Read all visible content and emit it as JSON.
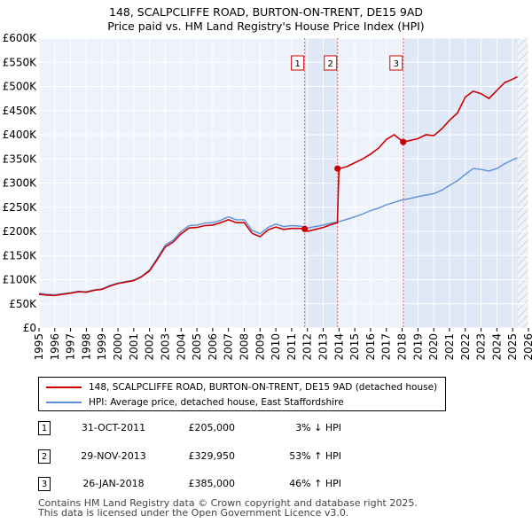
{
  "title_line1": "148, SCALPCLIFFE ROAD, BURTON-ON-TRENT, DE15 9AD",
  "title_line2": "Price paid vs. HM Land Registry's House Price Index (HPI)",
  "chart_data": {
    "type": "line",
    "title": "148, SCALPCLIFFE ROAD, BURTON-ON-TRENT, DE15 9AD — Price paid vs. HM Land Registry's House Price Index (HPI)",
    "xlabel": "",
    "ylabel": "",
    "xlim": [
      1995,
      2026
    ],
    "ylim": [
      0,
      600000
    ],
    "x_ticks": [
      1995,
      1996,
      1997,
      1998,
      1999,
      2000,
      2001,
      2002,
      2003,
      2004,
      2005,
      2006,
      2007,
      2008,
      2009,
      2010,
      2011,
      2012,
      2013,
      2014,
      2015,
      2016,
      2017,
      2018,
      2019,
      2020,
      2021,
      2022,
      2023,
      2024,
      2025,
      2026
    ],
    "y_ticks": [
      {
        "value": 0,
        "label": "£0"
      },
      {
        "value": 50000,
        "label": "£50K"
      },
      {
        "value": 100000,
        "label": "£100K"
      },
      {
        "value": 150000,
        "label": "£150K"
      },
      {
        "value": 200000,
        "label": "£200K"
      },
      {
        "value": 250000,
        "label": "£250K"
      },
      {
        "value": 300000,
        "label": "£300K"
      },
      {
        "value": 350000,
        "label": "£350K"
      },
      {
        "value": 400000,
        "label": "£400K"
      },
      {
        "value": 450000,
        "label": "£450K"
      },
      {
        "value": 500000,
        "label": "£500K"
      },
      {
        "value": 550000,
        "label": "£550K"
      },
      {
        "value": 600000,
        "label": "£600K"
      }
    ],
    "grid": true,
    "hatched_region_start": 2025.3,
    "series": [
      {
        "name": "148, SCALPCLIFFE ROAD, BURTON-ON-TRENT, DE15 9AD (detached house)",
        "color": "#cc0000",
        "x": [
          1995,
          1995.5,
          1996,
          1996.5,
          1997,
          1997.5,
          1998,
          1998.5,
          1999,
          1999.5,
          2000,
          2000.5,
          2001,
          2001.5,
          2002,
          2002.5,
          2003,
          2003.5,
          2004,
          2004.5,
          2005,
          2005.5,
          2006,
          2006.5,
          2007,
          2007.5,
          2008,
          2008.5,
          2009,
          2009.5,
          2010,
          2010.5,
          2011,
          2011.5,
          2011.83,
          2012,
          2012.5,
          2013,
          2013.5,
          2013.9,
          2014,
          2014.5,
          2015,
          2015.5,
          2016,
          2016.5,
          2017,
          2017.5,
          2018.07,
          2018.5,
          2019,
          2019.5,
          2020,
          2020.5,
          2021,
          2021.5,
          2022,
          2022.5,
          2023,
          2023.5,
          2024,
          2024.5,
          2025,
          2025.3
        ],
        "values": [
          70000,
          68000,
          67000,
          70000,
          72000,
          75000,
          74000,
          78000,
          80000,
          87000,
          92000,
          95000,
          98000,
          106000,
          118000,
          142000,
          168000,
          178000,
          195000,
          207000,
          208000,
          212000,
          213000,
          218000,
          224000,
          218000,
          218000,
          196000,
          189000,
          203000,
          209000,
          204000,
          206000,
          206000,
          205000,
          200000,
          204000,
          208000,
          214000,
          218000,
          329950,
          334000,
          342000,
          350000,
          360000,
          372000,
          390000,
          400000,
          385000,
          388000,
          392000,
          400000,
          398000,
          412000,
          430000,
          445000,
          478000,
          490000,
          485000,
          475000,
          492000,
          508000,
          515000,
          520000
        ]
      },
      {
        "name": "HPI: Average price, detached house, East Staffordshire",
        "color": "#5b8fd9",
        "x": [
          1995,
          1995.5,
          1996,
          1996.5,
          1997,
          1997.5,
          1998,
          1998.5,
          1999,
          1999.5,
          2000,
          2000.5,
          2001,
          2001.5,
          2002,
          2002.5,
          2003,
          2003.5,
          2004,
          2004.5,
          2005,
          2005.5,
          2006,
          2006.5,
          2007,
          2007.5,
          2008,
          2008.5,
          2009,
          2009.5,
          2010,
          2010.5,
          2011,
          2011.5,
          2012,
          2012.5,
          2013,
          2013.5,
          2014,
          2014.5,
          2015,
          2015.5,
          2016,
          2016.5,
          2017,
          2017.5,
          2018,
          2018.5,
          2019,
          2019.5,
          2020,
          2020.5,
          2021,
          2021.5,
          2022,
          2022.5,
          2023,
          2023.5,
          2024,
          2024.5,
          2025,
          2025.3
        ],
        "values": [
          72000,
          70000,
          69000,
          71000,
          73000,
          76000,
          75000,
          79000,
          81000,
          88000,
          93000,
          96000,
          99000,
          107000,
          120000,
          145000,
          172000,
          182000,
          200000,
          212000,
          213000,
          217000,
          218000,
          223000,
          230000,
          224000,
          224000,
          202000,
          195000,
          208000,
          215000,
          210000,
          212000,
          211000,
          207000,
          210000,
          213000,
          217000,
          220000,
          225000,
          230000,
          236000,
          243000,
          248000,
          255000,
          260000,
          265000,
          268000,
          272000,
          275000,
          278000,
          285000,
          295000,
          305000,
          318000,
          330000,
          328000,
          325000,
          330000,
          340000,
          348000,
          352000
        ]
      }
    ],
    "sales": [
      {
        "label": "1",
        "x": 2011.83,
        "value": 205000
      },
      {
        "label": "2",
        "x": 2013.91,
        "value": 329950
      },
      {
        "label": "3",
        "x": 2018.07,
        "value": 385000
      }
    ]
  },
  "legend": {
    "property_label": "148, SCALPCLIFFE ROAD, BURTON-ON-TRENT, DE15 9AD (detached house)",
    "hpi_label": "HPI: Average price, detached house, East Staffordshire"
  },
  "transactions": [
    {
      "num": "1",
      "date": "31-OCT-2011",
      "price": "£205,000",
      "hpi": "3% ↓ HPI"
    },
    {
      "num": "2",
      "date": "29-NOV-2013",
      "price": "£329,950",
      "hpi": "53% ↑ HPI"
    },
    {
      "num": "3",
      "date": "26-JAN-2018",
      "price": "£385,000",
      "hpi": "46% ↑ HPI"
    }
  ],
  "footer": {
    "line1": "Contains HM Land Registry data © Crown copyright and database right 2025.",
    "line2": "This data is licensed under the Open Government Licence v3.0."
  }
}
